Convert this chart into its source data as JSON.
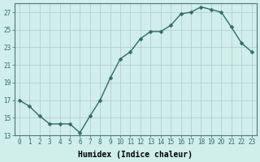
{
  "x": [
    0,
    1,
    2,
    3,
    4,
    5,
    6,
    7,
    8,
    9,
    10,
    11,
    12,
    13,
    14,
    15,
    16,
    17,
    18,
    19,
    20,
    21,
    22,
    23
  ],
  "y": [
    17,
    16.3,
    15.2,
    14.3,
    14.3,
    14.3,
    13.3,
    15.2,
    17,
    19.5,
    21.7,
    22.5,
    24.0,
    24.8,
    24.8,
    25.5,
    26.8,
    27.0,
    27.6,
    27.3,
    27.0,
    25.3,
    23.5,
    22.5
  ],
  "line_color": "#2e6e62",
  "marker_color": "#2e6e62",
  "bg_color": "#d0eeea",
  "grid_color": "#b0c8c8",
  "xlabel": "Humidex (Indice chaleur)",
  "ylim": [
    13,
    28
  ],
  "yticks": [
    13,
    15,
    17,
    19,
    21,
    23,
    25,
    27
  ],
  "xlim": [
    -0.5,
    23.5
  ],
  "xticks": [
    0,
    1,
    2,
    3,
    4,
    5,
    6,
    7,
    8,
    9,
    10,
    11,
    12,
    13,
    14,
    15,
    16,
    17,
    18,
    19,
    20,
    21,
    22,
    23
  ],
  "tick_fontsize": 5.5,
  "label_fontsize": 7.0,
  "linewidth": 1.0,
  "markersize": 2.5
}
